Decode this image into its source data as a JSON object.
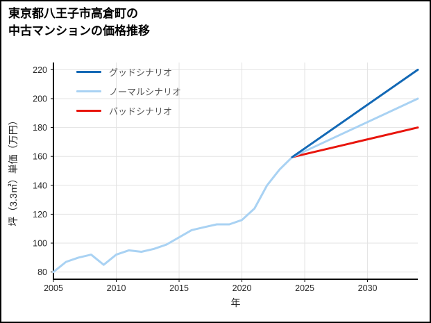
{
  "page": {
    "title_line1": "東京都八王子市高倉町の",
    "title_line2": "中古マンションの価格推移"
  },
  "chart_data": {
    "type": "line",
    "title": "東京都八王子市高倉町の中古マンションの価格推移",
    "xlabel": "年",
    "ylabel": "坪（3.3㎡）単価（万円）",
    "xlim": [
      2005,
      2034
    ],
    "ylim": [
      75,
      225
    ],
    "xticks": [
      2005,
      2010,
      2015,
      2020,
      2025,
      2030
    ],
    "yticks": [
      80,
      100,
      120,
      140,
      160,
      180,
      200,
      220
    ],
    "grid": true,
    "grid_color": "#e3e3e3",
    "axis_color": "#000000",
    "legend_position": "top-left",
    "series": [
      {
        "name": "グッドシナリオ",
        "color": "#1268b5",
        "x": [
          2024,
          2034
        ],
        "y": [
          159.5,
          220
        ]
      },
      {
        "name": "ノーマルシナリオ",
        "color": "#a9d2f3",
        "x": [
          2005,
          2006,
          2007,
          2008,
          2009,
          2010,
          2011,
          2012,
          2013,
          2014,
          2015,
          2016,
          2017,
          2018,
          2019,
          2020,
          2021,
          2022,
          2023,
          2024,
          2034
        ],
        "y": [
          80,
          87,
          90,
          92,
          85,
          92,
          95,
          94,
          96,
          99,
          104,
          109,
          111,
          113,
          113,
          116,
          124,
          140,
          151,
          159.5,
          200
        ]
      },
      {
        "name": "バッドシナリオ",
        "color": "#e8150d",
        "x": [
          2024,
          2034
        ],
        "y": [
          159.5,
          180
        ]
      }
    ]
  }
}
